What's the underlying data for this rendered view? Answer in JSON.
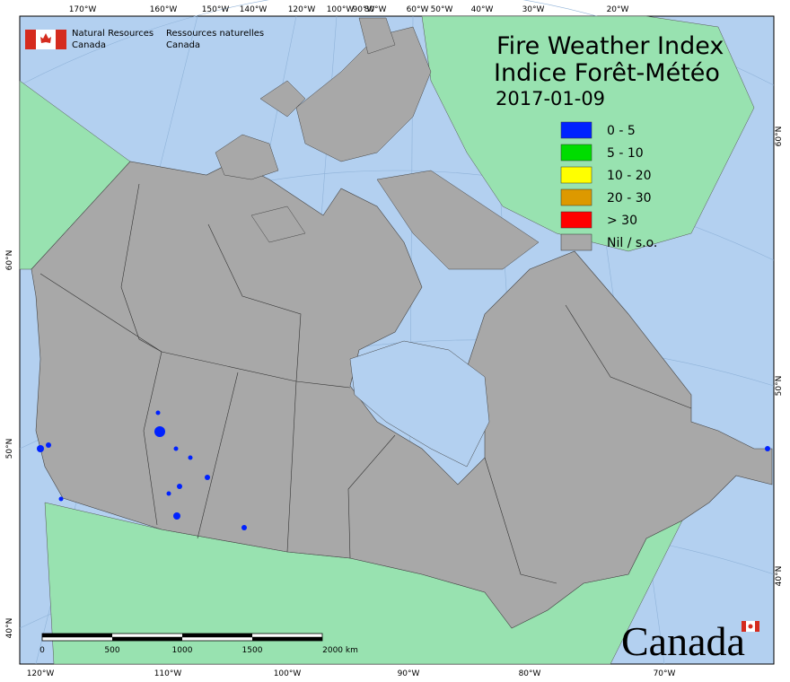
{
  "map": {
    "title": [
      "Fire Weather Index",
      "Indice Forêt-Météo"
    ],
    "date": "2017-01-09",
    "legend": [
      {
        "label": "0 - 5",
        "color": "#0022ff"
      },
      {
        "label": "5 - 10",
        "color": "#00dd00"
      },
      {
        "label": "10 - 20",
        "color": "#ffff00"
      },
      {
        "label": "20 - 30",
        "color": "#dd9900"
      },
      {
        "label": "> 30",
        "color": "#ff0000"
      },
      {
        "label": "Nil / s.o.",
        "color": "#a8a8a8"
      }
    ],
    "agency": {
      "en": [
        "Natural Resources",
        "Canada"
      ],
      "fr": [
        "Ressources naturelles",
        "Canada"
      ]
    },
    "wordmark": "Canada",
    "scale_bar": [
      "0",
      "500",
      "1000",
      "1500",
      "2000 km"
    ],
    "graticule": {
      "top": [
        "170°W",
        "160°W",
        "150°W",
        "140°W",
        "120°W",
        "100°W",
        "90°W",
        "80°W",
        "60°W",
        "50°W",
        "40°W",
        "30°W",
        "20°W"
      ],
      "bottom": [
        "120°W",
        "110°W",
        "100°W",
        "90°W",
        "80°W",
        "70°W"
      ],
      "left": [
        "60°N",
        "50°N",
        "40°N"
      ],
      "right": [
        "60°N",
        "50°N",
        "40°N"
      ]
    }
  }
}
